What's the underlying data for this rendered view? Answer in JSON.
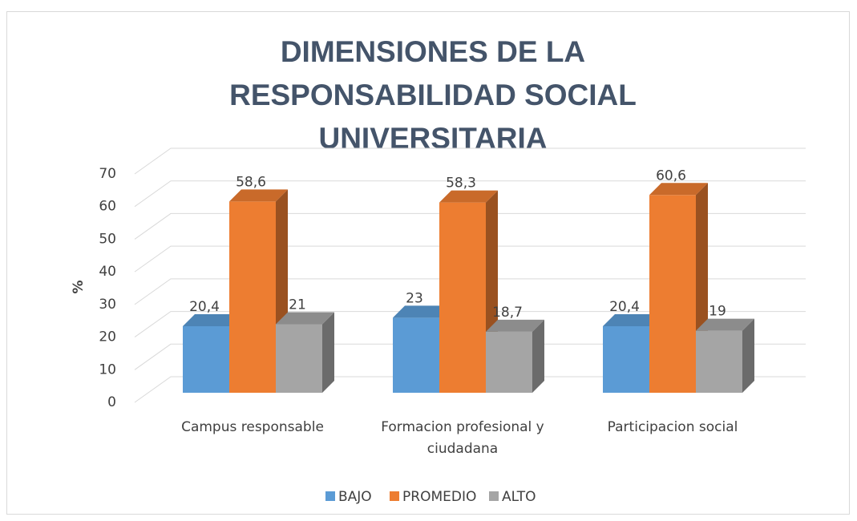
{
  "chart_data": {
    "type": "bar3d",
    "title": "DIMENSIONES DE LA RESPONSABILIDAD SOCIAL UNIVERSITARIA",
    "y_label": "%",
    "categories": [
      [
        "Campus responsable"
      ],
      [
        "Formacion profesional y",
        "ciudadana"
      ],
      [
        "Participacion social"
      ]
    ],
    "series": [
      {
        "name": "BAJO",
        "color": "#5b9bd5",
        "values": [
          20.4,
          23,
          20.4
        ],
        "value_labels": [
          "20,4",
          "23",
          "20,4"
        ]
      },
      {
        "name": "PROMEDIO",
        "color": "#ed7d31",
        "values": [
          58.6,
          58.3,
          60.6
        ],
        "value_labels": [
          "58,6",
          "58,3",
          "60,6"
        ]
      },
      {
        "name": "ALTO",
        "color": "#a5a5a5",
        "values": [
          21,
          18.7,
          19
        ],
        "value_labels": [
          "21",
          "18,7",
          "19"
        ]
      }
    ],
    "ylim": [
      0,
      70
    ],
    "yticks": [
      0,
      10,
      20,
      30,
      40,
      50,
      60,
      70
    ],
    "grid": true,
    "legend": "bottom"
  }
}
